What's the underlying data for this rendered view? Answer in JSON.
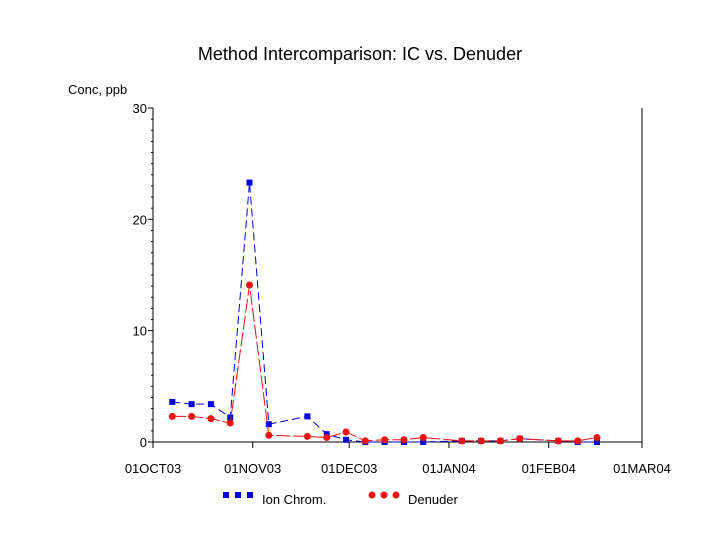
{
  "chart_data": {
    "type": "line",
    "title": "Method Intercomparison: IC vs. Denuder",
    "ylabel": "Conc, ppb",
    "xlabel": "",
    "ylim": [
      0,
      30
    ],
    "yticks": [
      0,
      10,
      20,
      30
    ],
    "xlim": [
      "2003-10-01",
      "2004-03-01"
    ],
    "xticks": [
      {
        "date": "2003-10-01",
        "label": "01OCT03"
      },
      {
        "date": "2003-11-01",
        "label": "01NOV03"
      },
      {
        "date": "2003-12-01",
        "label": "01DEC03"
      },
      {
        "date": "2004-01-01",
        "label": "01JAN04"
      },
      {
        "date": "2004-02-01",
        "label": "01FEB04"
      },
      {
        "date": "2004-03-01",
        "label": "01MAR04"
      }
    ],
    "x": [
      "2003-10-07",
      "2003-10-13",
      "2003-10-19",
      "2003-10-25",
      "2003-10-31",
      "2003-11-06",
      "2003-11-18",
      "2003-11-24",
      "2003-11-30",
      "2003-12-06",
      "2003-12-12",
      "2003-12-18",
      "2003-12-24",
      "2004-01-05",
      "2004-01-11",
      "2004-01-17",
      "2004-01-23",
      "2004-02-04",
      "2004-02-10",
      "2004-02-16"
    ],
    "series": [
      {
        "name": "Ion Chrom.",
        "color": "#0000dd",
        "values": [
          3.6,
          3.4,
          3.4,
          2.2,
          23.3,
          1.6,
          2.3,
          0.7,
          0.2,
          0.0,
          0.0,
          0.0,
          0.0,
          0.1,
          0.1,
          0.1,
          0.3,
          0.1,
          0.0,
          0.0
        ]
      },
      {
        "name": "Denuder",
        "color": "#ee1111",
        "values": [
          2.3,
          2.3,
          2.1,
          1.7,
          14.1,
          0.6,
          0.5,
          0.4,
          0.9,
          0.1,
          0.2,
          0.2,
          0.4,
          0.1,
          0.1,
          0.1,
          0.3,
          0.1,
          0.1,
          0.4
        ]
      }
    ],
    "grid": false,
    "legend_position": "bottom"
  }
}
